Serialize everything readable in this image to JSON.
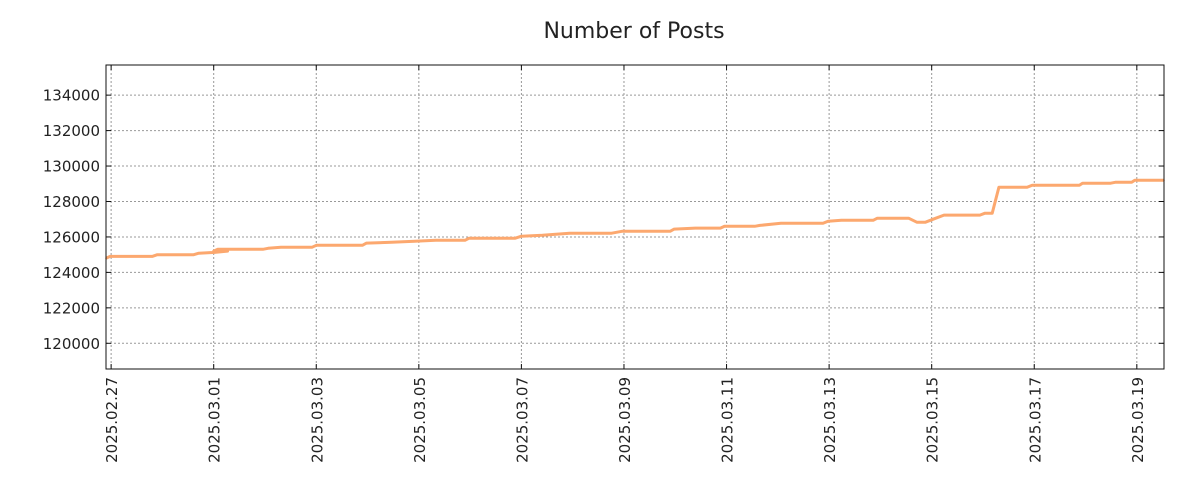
{
  "chart_data": {
    "type": "line",
    "title": "Number of Posts",
    "xlabel": "",
    "ylabel": "",
    "x_unit": "days since 2025-02-26 00:00",
    "xlim": [
      0.9,
      21.53
    ],
    "ylim": [
      118550,
      135700
    ],
    "grid": true,
    "legend": "none",
    "line_color": "#fca86f",
    "xticks": [
      {
        "value": 1,
        "label": "2025.02.27"
      },
      {
        "value": 3,
        "label": "2025.03.01"
      },
      {
        "value": 5,
        "label": "2025.03.03"
      },
      {
        "value": 7,
        "label": "2025.03.05"
      },
      {
        "value": 9,
        "label": "2025.03.07"
      },
      {
        "value": 11,
        "label": "2025.03.09"
      },
      {
        "value": 13,
        "label": "2025.03.11"
      },
      {
        "value": 15,
        "label": "2025.03.13"
      },
      {
        "value": 17,
        "label": "2025.03.15"
      },
      {
        "value": 19,
        "label": "2025.03.17"
      },
      {
        "value": 21,
        "label": "2025.03.19"
      }
    ],
    "yticks": [
      {
        "value": 120000,
        "label": "120000"
      },
      {
        "value": 122000,
        "label": "122000"
      },
      {
        "value": 124000,
        "label": "124000"
      },
      {
        "value": 126000,
        "label": "126000"
      },
      {
        "value": 128000,
        "label": "128000"
      },
      {
        "value": 130000,
        "label": "130000"
      },
      {
        "value": 132000,
        "label": "132000"
      },
      {
        "value": 134000,
        "label": "134000"
      }
    ],
    "series": [
      {
        "name": "Number of Posts",
        "points": [
          [
            0.9,
            124800
          ],
          [
            0.98,
            124900
          ],
          [
            1.8,
            124900
          ],
          [
            1.9,
            125000
          ],
          [
            2.61,
            125000
          ],
          [
            2.71,
            125080
          ],
          [
            3.02,
            125130
          ],
          [
            3.27,
            125200
          ],
          [
            3.0,
            125200
          ],
          [
            3.08,
            125300
          ],
          [
            3.96,
            125300
          ],
          [
            4.06,
            125360
          ],
          [
            4.31,
            125420
          ],
          [
            4.92,
            125420
          ],
          [
            5.0,
            125530
          ],
          [
            5.9,
            125530
          ],
          [
            5.98,
            125650
          ],
          [
            6.47,
            125700
          ],
          [
            6.92,
            125760
          ],
          [
            7.33,
            125810
          ],
          [
            7.9,
            125810
          ],
          [
            7.98,
            125930
          ],
          [
            8.88,
            125930
          ],
          [
            9.0,
            126040
          ],
          [
            9.41,
            126100
          ],
          [
            9.94,
            126210
          ],
          [
            10.76,
            126210
          ],
          [
            10.96,
            126320
          ],
          [
            11.9,
            126320
          ],
          [
            11.98,
            126440
          ],
          [
            12.39,
            126500
          ],
          [
            12.88,
            126500
          ],
          [
            12.96,
            126600
          ],
          [
            13.55,
            126600
          ],
          [
            13.65,
            126650
          ],
          [
            14.06,
            126770
          ],
          [
            14.88,
            126770
          ],
          [
            14.98,
            126890
          ],
          [
            15.24,
            126940
          ],
          [
            15.86,
            126940
          ],
          [
            15.94,
            127060
          ],
          [
            16.55,
            127060
          ],
          [
            16.71,
            126830
          ],
          [
            16.88,
            126830
          ],
          [
            17.08,
            127060
          ],
          [
            17.24,
            127230
          ],
          [
            17.94,
            127230
          ],
          [
            18.04,
            127340
          ],
          [
            18.18,
            127340
          ],
          [
            18.31,
            128800
          ],
          [
            18.86,
            128800
          ],
          [
            18.96,
            128920
          ],
          [
            19.88,
            128920
          ],
          [
            19.94,
            129030
          ],
          [
            20.49,
            129030
          ],
          [
            20.59,
            129090
          ],
          [
            20.9,
            129090
          ],
          [
            20.96,
            129200
          ],
          [
            21.53,
            129200
          ]
        ]
      }
    ]
  }
}
